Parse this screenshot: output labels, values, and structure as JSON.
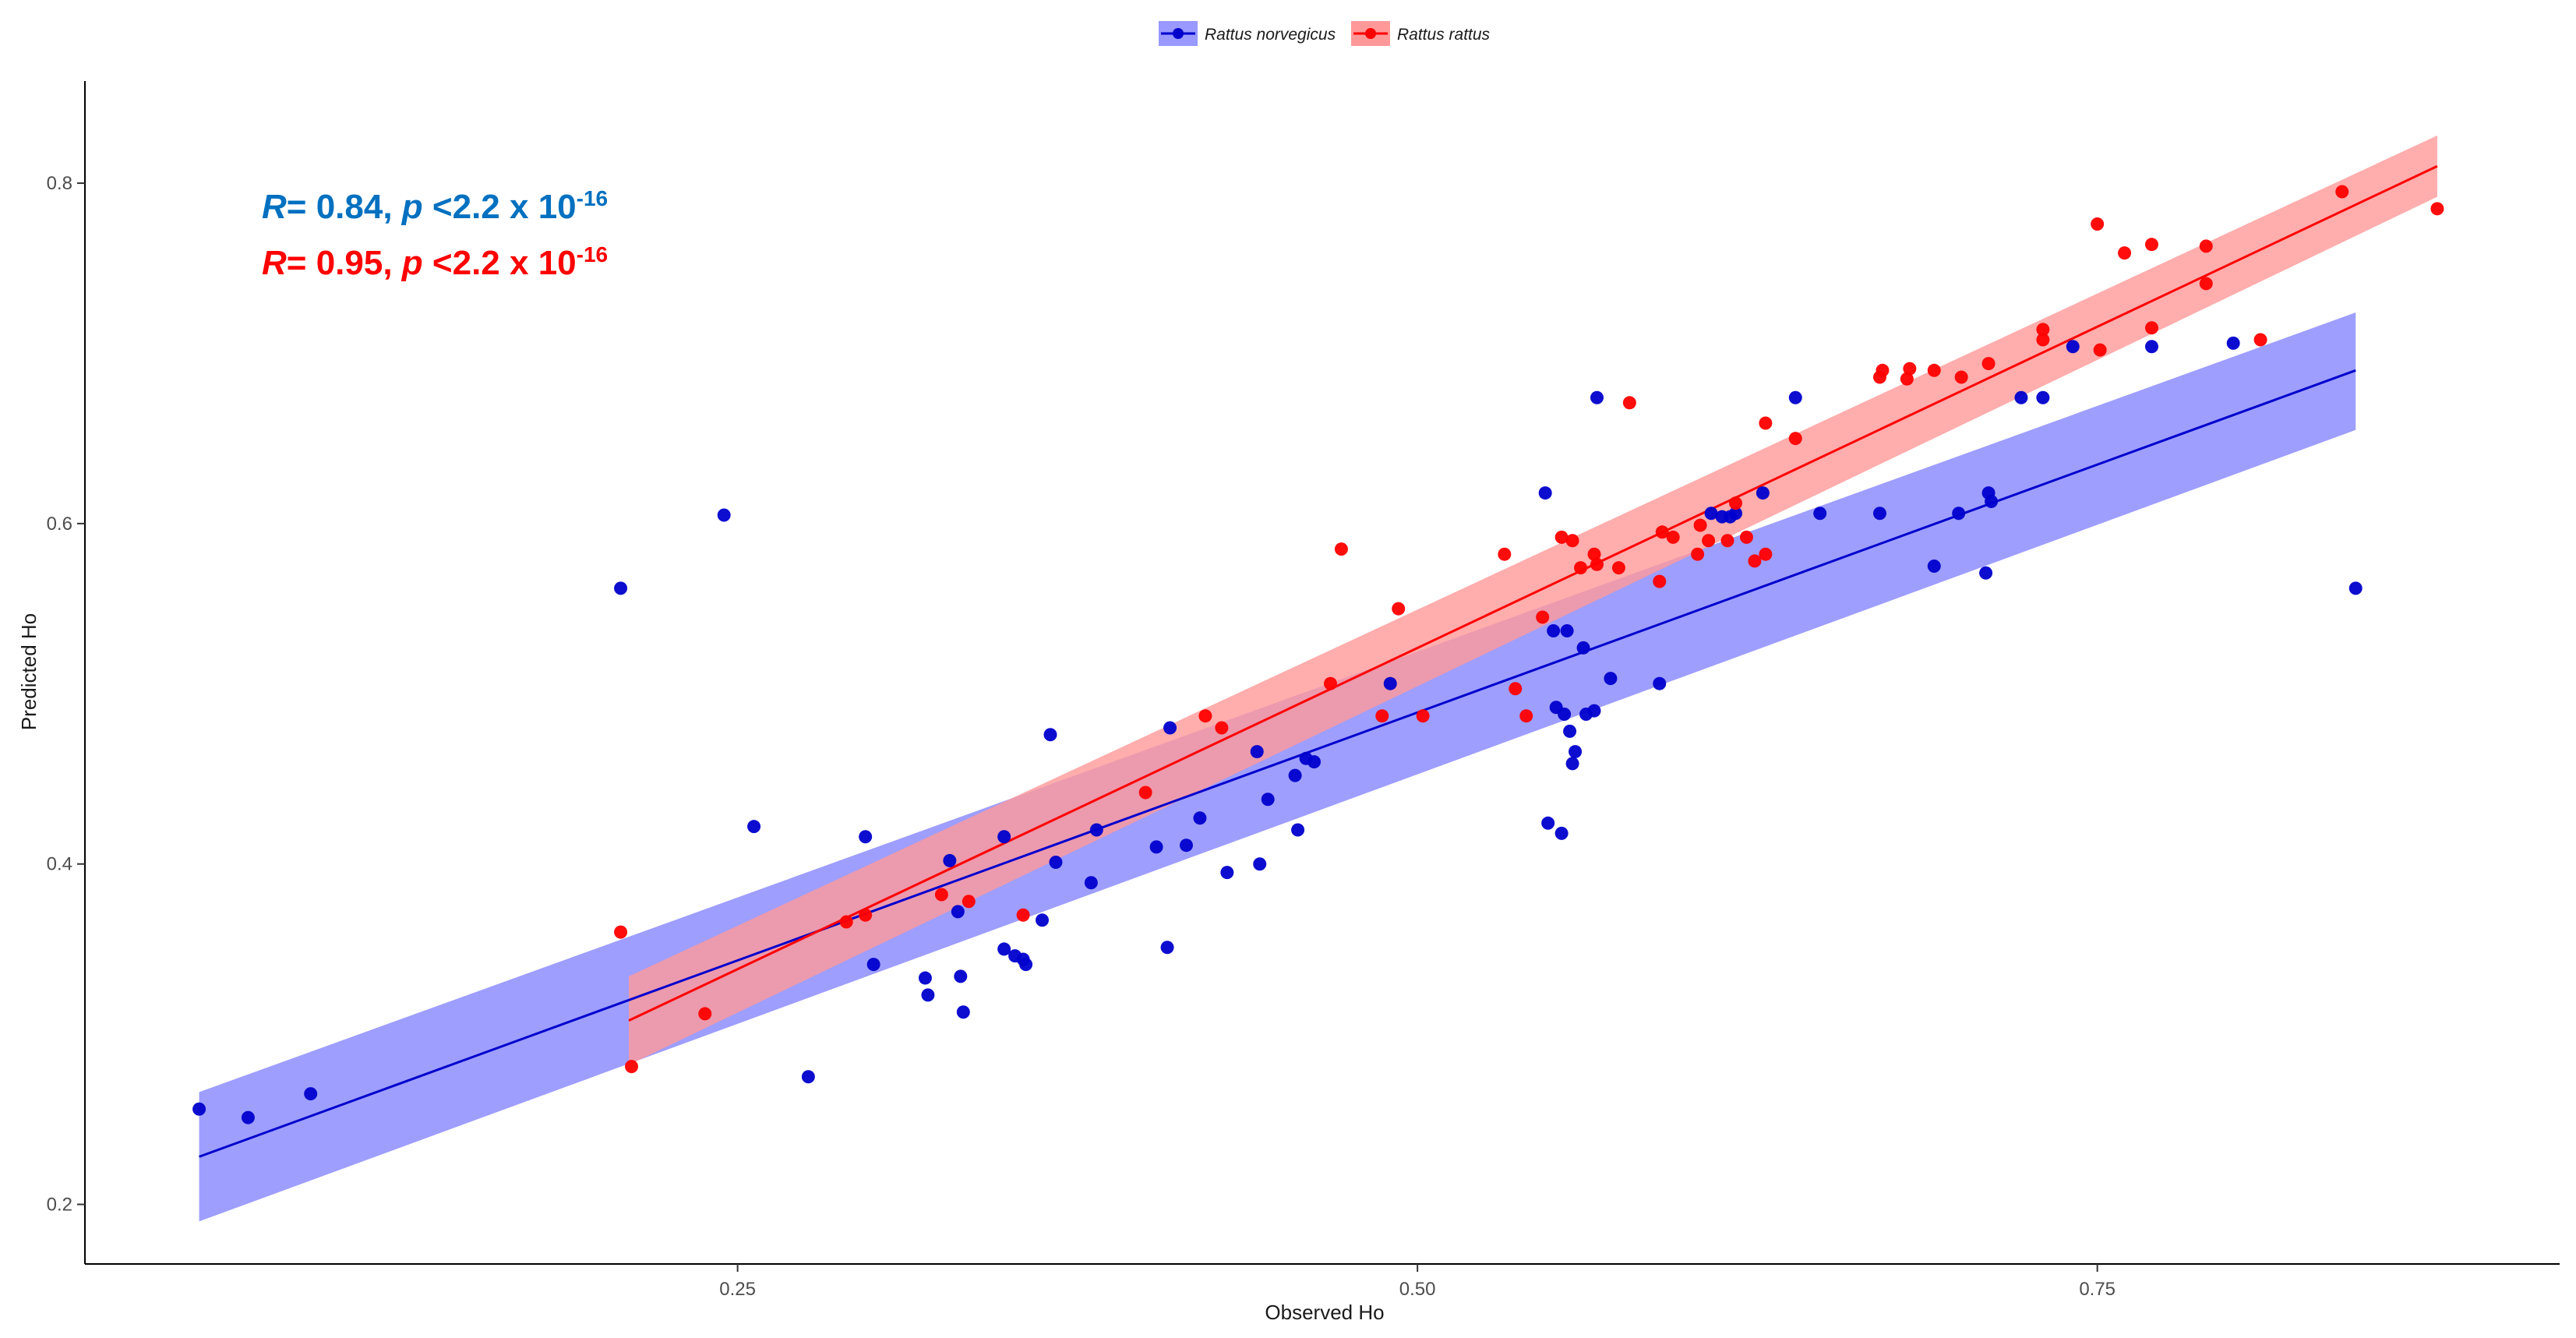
{
  "chart_data": {
    "type": "scatter",
    "xlabel": "Observed Ho",
    "ylabel": "Predicted Ho",
    "xlim": [
      0.01,
      0.92
    ],
    "ylim": [
      0.165,
      0.86
    ],
    "x_ticks": [
      0.25,
      0.5,
      0.75
    ],
    "x_tick_labels": [
      "0.25",
      "0.50",
      "0.75"
    ],
    "y_ticks": [
      0.2,
      0.4,
      0.6,
      0.8
    ],
    "y_tick_labels": [
      "0.2",
      "0.4",
      "0.6",
      "0.8"
    ],
    "grid": false,
    "legend_position": "top",
    "annotations": [
      {
        "r_label": "R",
        "r_text": "= 0.84, ",
        "p_label": "p",
        "p_text": " <2.2 x 10",
        "exponent": "-16",
        "color": "#0070c0"
      },
      {
        "r_label": "R",
        "r_text": "= 0.95, ",
        "p_label": "p",
        "p_text": " <2.2 x 10",
        "exponent": "-16",
        "color": "#ff0000"
      }
    ],
    "series": [
      {
        "name": "Rattus norvegicus",
        "color": "#0000cd",
        "band_color": "#9999ff",
        "fit": {
          "x0": 0.052,
          "y0": 0.228,
          "x1": 0.845,
          "y1": 0.69
        },
        "band": {
          "lower": [
            0.19,
            0.655
          ],
          "upper": [
            0.266,
            0.724
          ]
        },
        "points": [
          [
            0.052,
            0.256
          ],
          [
            0.07,
            0.251
          ],
          [
            0.093,
            0.265
          ],
          [
            0.207,
            0.562
          ],
          [
            0.245,
            0.605
          ],
          [
            0.256,
            0.422
          ],
          [
            0.276,
            0.275
          ],
          [
            0.297,
            0.416
          ],
          [
            0.3,
            0.341
          ],
          [
            0.319,
            0.333
          ],
          [
            0.32,
            0.323
          ],
          [
            0.328,
            0.402
          ],
          [
            0.331,
            0.372
          ],
          [
            0.332,
            0.334
          ],
          [
            0.333,
            0.313
          ],
          [
            0.348,
            0.416
          ],
          [
            0.348,
            0.35
          ],
          [
            0.352,
            0.346
          ],
          [
            0.355,
            0.344
          ],
          [
            0.356,
            0.341
          ],
          [
            0.362,
            0.367
          ],
          [
            0.365,
            0.476
          ],
          [
            0.367,
            0.401
          ],
          [
            0.38,
            0.389
          ],
          [
            0.382,
            0.42
          ],
          [
            0.404,
            0.41
          ],
          [
            0.408,
            0.351
          ],
          [
            0.409,
            0.48
          ],
          [
            0.415,
            0.411
          ],
          [
            0.42,
            0.427
          ],
          [
            0.43,
            0.395
          ],
          [
            0.441,
            0.466
          ],
          [
            0.442,
            0.4
          ],
          [
            0.445,
            0.438
          ],
          [
            0.455,
            0.452
          ],
          [
            0.456,
            0.42
          ],
          [
            0.459,
            0.462
          ],
          [
            0.462,
            0.46
          ],
          [
            0.49,
            0.506
          ],
          [
            0.547,
            0.618
          ],
          [
            0.548,
            0.424
          ],
          [
            0.55,
            0.537
          ],
          [
            0.551,
            0.492
          ],
          [
            0.553,
            0.418
          ],
          [
            0.554,
            0.488
          ],
          [
            0.555,
            0.537
          ],
          [
            0.556,
            0.478
          ],
          [
            0.557,
            0.459
          ],
          [
            0.558,
            0.466
          ],
          [
            0.561,
            0.527
          ],
          [
            0.562,
            0.488
          ],
          [
            0.565,
            0.49
          ],
          [
            0.566,
            0.674
          ],
          [
            0.571,
            0.509
          ],
          [
            0.589,
            0.506
          ],
          [
            0.608,
            0.606
          ],
          [
            0.612,
            0.604
          ],
          [
            0.615,
            0.604
          ],
          [
            0.617,
            0.606
          ],
          [
            0.627,
            0.618
          ],
          [
            0.639,
            0.674
          ],
          [
            0.648,
            0.606
          ],
          [
            0.67,
            0.606
          ],
          [
            0.69,
            0.575
          ],
          [
            0.699,
            0.606
          ],
          [
            0.709,
            0.571
          ],
          [
            0.71,
            0.618
          ],
          [
            0.711,
            0.613
          ],
          [
            0.722,
            0.674
          ],
          [
            0.73,
            0.674
          ],
          [
            0.741,
            0.704
          ],
          [
            0.77,
            0.704
          ],
          [
            0.8,
            0.706
          ],
          [
            0.845,
            0.562
          ]
        ]
      },
      {
        "name": "Rattus rattus",
        "color": "#ff0000",
        "band_color": "#ff9999",
        "fit": {
          "x0": 0.21,
          "y0": 0.308,
          "x1": 0.875,
          "y1": 0.81
        },
        "band": {
          "lower": [
            0.282,
            0.792
          ],
          "upper": [
            0.334,
            0.828
          ]
        },
        "points": [
          [
            0.207,
            0.36
          ],
          [
            0.211,
            0.281
          ],
          [
            0.238,
            0.312
          ],
          [
            0.29,
            0.366
          ],
          [
            0.297,
            0.37
          ],
          [
            0.325,
            0.382
          ],
          [
            0.335,
            0.378
          ],
          [
            0.355,
            0.37
          ],
          [
            0.4,
            0.442
          ],
          [
            0.422,
            0.487
          ],
          [
            0.428,
            0.48
          ],
          [
            0.468,
            0.506
          ],
          [
            0.472,
            0.585
          ],
          [
            0.487,
            0.487
          ],
          [
            0.493,
            0.55
          ],
          [
            0.502,
            0.487
          ],
          [
            0.532,
            0.582
          ],
          [
            0.536,
            0.503
          ],
          [
            0.54,
            0.487
          ],
          [
            0.546,
            0.545
          ],
          [
            0.553,
            0.592
          ],
          [
            0.557,
            0.59
          ],
          [
            0.56,
            0.574
          ],
          [
            0.565,
            0.582
          ],
          [
            0.566,
            0.576
          ],
          [
            0.574,
            0.574
          ],
          [
            0.578,
            0.671
          ],
          [
            0.589,
            0.566
          ],
          [
            0.59,
            0.595
          ],
          [
            0.594,
            0.592
          ],
          [
            0.603,
            0.582
          ],
          [
            0.604,
            0.599
          ],
          [
            0.607,
            0.59
          ],
          [
            0.614,
            0.59
          ],
          [
            0.617,
            0.612
          ],
          [
            0.621,
            0.592
          ],
          [
            0.624,
            0.578
          ],
          [
            0.628,
            0.582
          ],
          [
            0.628,
            0.659
          ],
          [
            0.639,
            0.65
          ],
          [
            0.67,
            0.686
          ],
          [
            0.671,
            0.69
          ],
          [
            0.68,
            0.685
          ],
          [
            0.681,
            0.691
          ],
          [
            0.69,
            0.69
          ],
          [
            0.7,
            0.686
          ],
          [
            0.71,
            0.694
          ],
          [
            0.73,
            0.708
          ],
          [
            0.73,
            0.714
          ],
          [
            0.75,
            0.776
          ],
          [
            0.751,
            0.702
          ],
          [
            0.76,
            0.759
          ],
          [
            0.77,
            0.764
          ],
          [
            0.77,
            0.715
          ],
          [
            0.79,
            0.763
          ],
          [
            0.79,
            0.741
          ],
          [
            0.81,
            0.708
          ],
          [
            0.84,
            0.795
          ],
          [
            0.875,
            0.785
          ]
        ]
      }
    ]
  }
}
